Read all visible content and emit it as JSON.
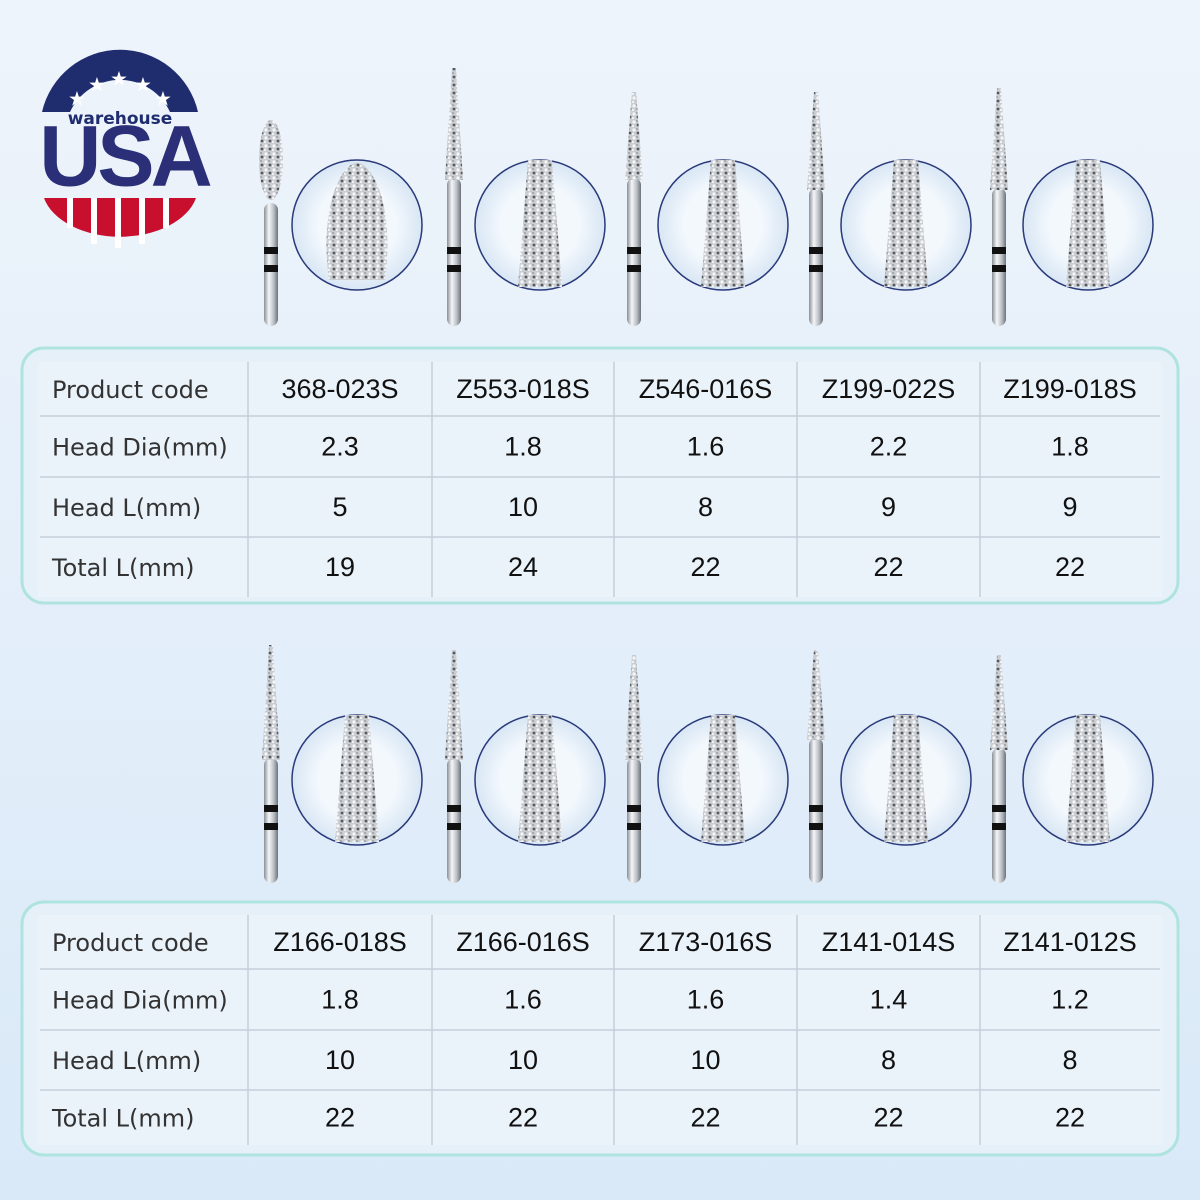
{
  "logo": {
    "caption": "warehouse",
    "title": "USA"
  },
  "tables": [
    {
      "rows": [
        [
          "Product code",
          "368-023S",
          "Z553-018S",
          "Z546-016S",
          "Z199-022S",
          "Z199-018S"
        ],
        [
          "Head Dia(mm)",
          "2.3",
          "1.8",
          "1.6",
          "2.2",
          "1.8"
        ],
        [
          "Head L(mm)",
          "5",
          "10",
          "8",
          "9",
          "9"
        ],
        [
          "Total L(mm)",
          "19",
          "24",
          "22",
          "22",
          "22"
        ]
      ]
    },
    {
      "rows": [
        [
          "Product code",
          "Z166-018S",
          "Z166-016S",
          "Z173-016S",
          "Z141-014S",
          "Z141-012S"
        ],
        [
          "Head Dia(mm)",
          "1.8",
          "1.6",
          "1.6",
          "1.4",
          "1.2"
        ],
        [
          "Head L(mm)",
          "10",
          "10",
          "10",
          "8",
          "8"
        ],
        [
          "Total L(mm)",
          "22",
          "22",
          "22",
          "22",
          "22"
        ]
      ]
    }
  ]
}
